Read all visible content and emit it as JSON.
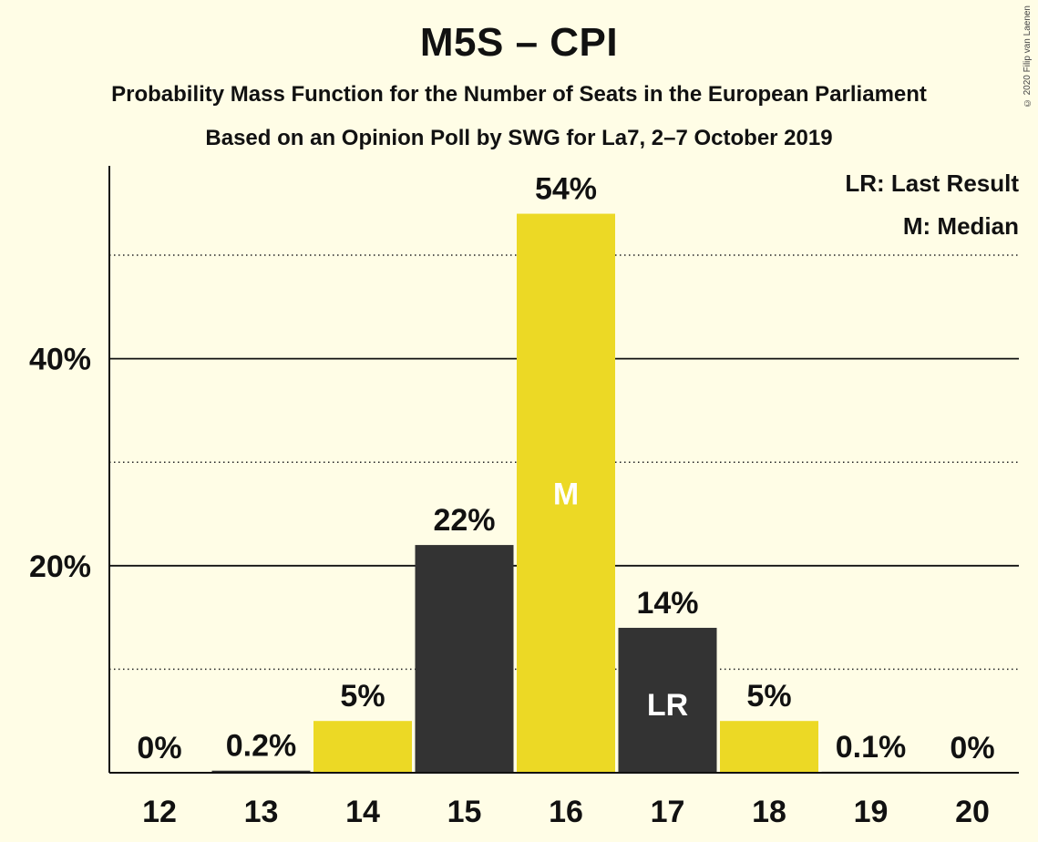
{
  "title": "M5S – CPI",
  "subtitle1": "Probability Mass Function for the Number of Seats in the European Parliament",
  "subtitle2": "Based on an Opinion Poll by SWG for La7, 2–7 October 2019",
  "copyright": "© 2020 Filip van Laenen",
  "legend": {
    "last_result": "LR: Last Result",
    "median": "M: Median"
  },
  "colors": {
    "background": "#fffde6",
    "yellow": "#ecd925",
    "dark": "#333333",
    "axis": "#111111"
  },
  "chart_data": {
    "type": "bar",
    "title": "M5S – CPI",
    "xlabel": "",
    "ylabel": "",
    "ylim": [
      0,
      58
    ],
    "grid": true,
    "legend_position": "top-right",
    "y_ticks_labeled": [
      {
        "value": 20,
        "label": "20%"
      },
      {
        "value": 40,
        "label": "40%"
      }
    ],
    "y_ticks_dotted": [
      10,
      30,
      50
    ],
    "categories": [
      "12",
      "13",
      "14",
      "15",
      "16",
      "17",
      "18",
      "19",
      "20"
    ],
    "values": [
      0,
      0.2,
      5,
      22,
      54,
      14,
      5,
      0.1,
      0
    ],
    "value_labels": [
      "0%",
      "0.2%",
      "5%",
      "22%",
      "54%",
      "14%",
      "5%",
      "0.1%",
      "0%"
    ],
    "bar_colors": [
      "yellow",
      "dark",
      "yellow",
      "dark",
      "yellow",
      "dark",
      "yellow",
      "dark",
      "yellow"
    ],
    "marks": [
      {
        "category": "16",
        "label": "M"
      },
      {
        "category": "17",
        "label": "LR"
      }
    ]
  }
}
